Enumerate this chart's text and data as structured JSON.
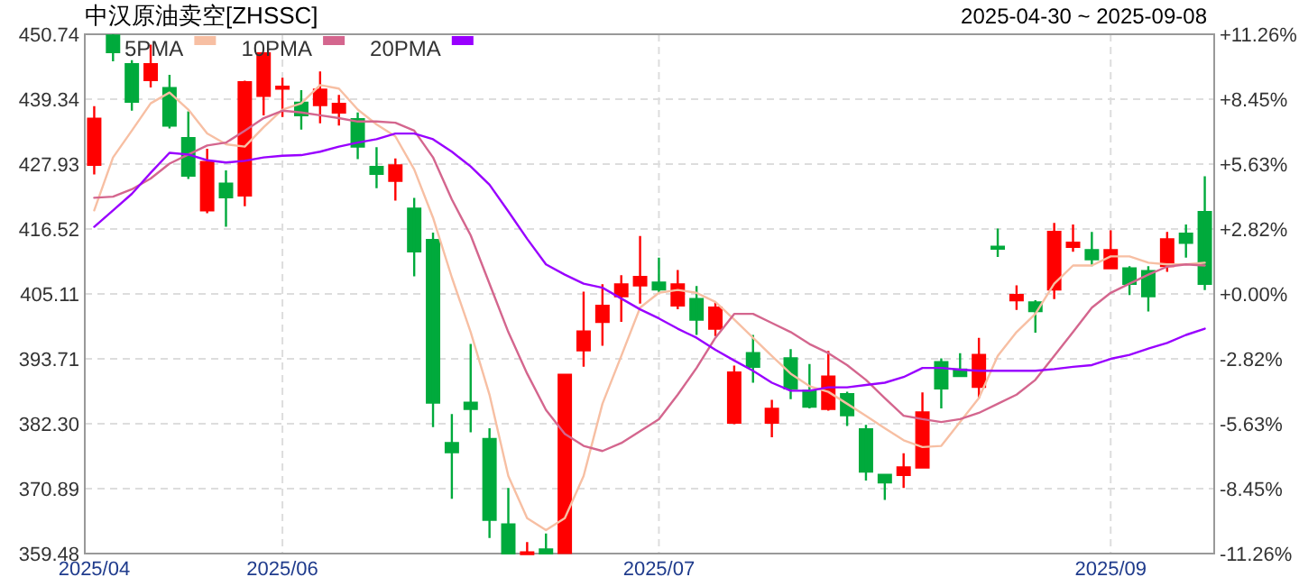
{
  "chart_data": {
    "type": "candlestick",
    "title": "中汉原油卖空[ZHSSC]",
    "subtitle": "2025-04-30 ~ 2025-09-08",
    "categories": [
      "2025/04",
      null,
      null,
      null,
      null,
      null,
      null,
      null,
      null,
      null,
      "2025/06",
      null,
      null,
      null,
      null,
      null,
      null,
      null,
      null,
      null,
      null,
      null,
      null,
      null,
      null,
      null,
      null,
      null,
      null,
      null,
      "2025/07",
      null,
      null,
      null,
      null,
      null,
      null,
      null,
      null,
      null,
      null,
      null,
      null,
      null,
      null,
      null,
      null,
      null,
      null,
      null,
      null,
      null,
      null,
      null,
      "2025/09",
      null,
      null,
      null,
      null,
      null
    ],
    "ohlc": [
      [
        427.8,
        438.1,
        426.1,
        435.9
      ],
      [
        450.5,
        450.74,
        446.0,
        447.6
      ],
      [
        445.5,
        446.2,
        437.3,
        438.9
      ],
      [
        442.7,
        448.9,
        441.4,
        445.5
      ],
      [
        441.3,
        443.6,
        434.2,
        434.7
      ],
      [
        432.5,
        437.2,
        425.3,
        425.9
      ],
      [
        419.8,
        430.6,
        419.3,
        428.3
      ],
      [
        424.5,
        426.8,
        416.9,
        422.1
      ],
      [
        422.4,
        442.6,
        420.5,
        442.3
      ],
      [
        439.9,
        447.6,
        436.5,
        447.4
      ],
      [
        441.3,
        443.1,
        436.2,
        441.5
      ],
      [
        438.7,
        440.9,
        434.0,
        436.5
      ],
      [
        438.3,
        444.2,
        435.1,
        441.0
      ],
      [
        437.0,
        440.1,
        434.7,
        438.5
      ],
      [
        435.8,
        437.0,
        428.8,
        431.0
      ],
      [
        427.4,
        430.9,
        423.7,
        426.2
      ],
      [
        425.0,
        428.9,
        421.5,
        427.7
      ],
      [
        420.1,
        422.0,
        408.2,
        412.6
      ],
      [
        414.6,
        415.9,
        381.7,
        386.0
      ],
      [
        378.9,
        384.0,
        369.1,
        377.3
      ],
      [
        386.0,
        396.3,
        380.8,
        384.9
      ],
      [
        379.6,
        381.5,
        362.2,
        365.4
      ],
      [
        364.6,
        371.0,
        359.48,
        359.5
      ],
      [
        359.48,
        361.5,
        359.48,
        359.7
      ],
      [
        360.2,
        363.0,
        359.48,
        359.5
      ],
      [
        359.6,
        390.9,
        359.48,
        390.9
      ],
      [
        395.2,
        405.5,
        392.3,
        398.5
      ],
      [
        400.2,
        406.8,
        396.0,
        403.0
      ],
      [
        404.7,
        408.4,
        400.2,
        406.8
      ],
      [
        406.6,
        415.3,
        403.4,
        408.1
      ],
      [
        407.1,
        411.5,
        405.3,
        405.9
      ],
      [
        403.1,
        409.3,
        402.4,
        406.8
      ],
      [
        404.2,
        406.5,
        397.9,
        400.6
      ],
      [
        399.0,
        403.6,
        397.7,
        402.7
      ],
      [
        382.5,
        392.5,
        382.2,
        391.3
      ],
      [
        394.7,
        397.9,
        389.5,
        392.3
      ],
      [
        382.5,
        386.5,
        379.9,
        384.9
      ],
      [
        393.8,
        395.4,
        386.6,
        388.5
      ],
      [
        388.1,
        392.8,
        385.0,
        385.3
      ],
      [
        384.9,
        395.1,
        384.6,
        390.6
      ],
      [
        387.5,
        387.9,
        381.9,
        383.8
      ],
      [
        381.3,
        382.1,
        372.3,
        373.9
      ],
      [
        373.3,
        373.3,
        368.9,
        372.0
      ],
      [
        373.3,
        377.1,
        371.0,
        374.6
      ],
      [
        374.6,
        387.8,
        374.6,
        384.3
      ],
      [
        393.1,
        393.8,
        385.0,
        388.5
      ],
      [
        391.8,
        394.7,
        390.5,
        390.7
      ],
      [
        388.8,
        397.4,
        386.8,
        394.4
      ],
      [
        413.4,
        416.6,
        411.6,
        413.2
      ],
      [
        404.0,
        406.6,
        402.3,
        404.9
      ],
      [
        403.6,
        404.0,
        398.3,
        402.1
      ],
      [
        405.9,
        417.6,
        404.2,
        416.0
      ],
      [
        413.4,
        417.3,
        412.5,
        414.1
      ],
      [
        412.8,
        416.0,
        410.0,
        411.2
      ],
      [
        409.6,
        416.3,
        409.6,
        412.8
      ],
      [
        409.6,
        410.0,
        404.9,
        406.9
      ],
      [
        409.1,
        410.0,
        402.0,
        404.7
      ],
      [
        410.0,
        416.0,
        409.0,
        414.7
      ],
      [
        415.7,
        417.3,
        411.5,
        414.1
      ],
      [
        419.5,
        425.8,
        405.8,
        406.9
      ]
    ],
    "colors": [
      "#ff0000",
      "#00aa3c",
      "#00aa3c",
      "#ff0000",
      "#00aa3c",
      "#00aa3c",
      "#ff0000",
      "#00aa3c",
      "#ff0000",
      "#ff0000",
      "#ff0000",
      "#00aa3c",
      "#ff0000",
      "#ff0000",
      "#00aa3c",
      "#00aa3c",
      "#ff0000",
      "#00aa3c",
      "#00aa3c",
      "#00aa3c",
      "#00aa3c",
      "#00aa3c",
      "#00aa3c",
      "#ff0000",
      "#00aa3c",
      "#ff0000",
      "#ff0000",
      "#ff0000",
      "#ff0000",
      "#ff0000",
      "#00aa3c",
      "#ff0000",
      "#00aa3c",
      "#ff0000",
      "#ff0000",
      "#00aa3c",
      "#ff0000",
      "#00aa3c",
      "#00aa3c",
      "#ff0000",
      "#00aa3c",
      "#00aa3c",
      "#00aa3c",
      "#ff0000",
      "#ff0000",
      "#00aa3c",
      "#00aa3c",
      "#ff0000",
      "#00aa3c",
      "#ff0000",
      "#00aa3c",
      "#ff0000",
      "#ff0000",
      "#00aa3c",
      "#ff0000",
      "#00aa3c",
      "#00aa3c",
      "#ff0000",
      "#00aa3c",
      "#00aa3c"
    ],
    "series": [
      {
        "name": "5PMA",
        "type": "line",
        "color": "#f7bfa3",
        "values": [
          419.8,
          429.1,
          433.8,
          438.6,
          440.5,
          437.5,
          433.3,
          431.4,
          431.0,
          434.4,
          437.5,
          438.6,
          441.8,
          441.2,
          437.5,
          434.9,
          432.8,
          427.0,
          418.5,
          408.0,
          398.4,
          387.4,
          373.1,
          365.7,
          363.6,
          365.7,
          373.1,
          385.8,
          394.2,
          402.7,
          405.3,
          405.8,
          405.3,
          403.7,
          400.6,
          397.4,
          394.2,
          391.1,
          388.9,
          387.9,
          385.8,
          383.7,
          381.5,
          379.4,
          378.2,
          378.4,
          382.6,
          386.8,
          394.2,
          398.4,
          401.6,
          406.9,
          410.1,
          410.1,
          411.7,
          411.7,
          410.6,
          410.3,
          410.3,
          410.6
        ]
      },
      {
        "name": "10PMA",
        "type": "line",
        "color": "#d4668e",
        "values": [
          422.0,
          422.2,
          423.5,
          425.4,
          428.0,
          429.6,
          431.2,
          431.7,
          433.8,
          436.0,
          437.3,
          437.0,
          436.5,
          436.0,
          435.4,
          435.4,
          435.2,
          433.8,
          429.1,
          421.7,
          415.4,
          406.9,
          398.4,
          391.1,
          384.7,
          380.5,
          378.4,
          377.5,
          378.9,
          381.0,
          383.1,
          387.4,
          392.1,
          397.4,
          401.6,
          401.6,
          400.0,
          398.4,
          396.3,
          394.7,
          392.6,
          390.0,
          386.8,
          383.7,
          383.1,
          382.6,
          383.1,
          384.2,
          385.8,
          387.4,
          390.0,
          394.2,
          398.4,
          402.7,
          405.3,
          406.9,
          408.5,
          409.9,
          410.3,
          410.1
        ]
      },
      {
        "name": "20PMA",
        "type": "line",
        "color": "#9900ff",
        "values": [
          416.9,
          419.8,
          422.7,
          426.4,
          429.9,
          429.6,
          428.6,
          428.2,
          428.5,
          429.1,
          429.4,
          429.5,
          430.1,
          431.0,
          431.7,
          432.3,
          433.3,
          433.3,
          432.3,
          430.1,
          427.5,
          424.3,
          419.6,
          414.8,
          410.3,
          408.5,
          406.9,
          406.2,
          404.3,
          402.4,
          400.8,
          399.0,
          397.4,
          395.3,
          393.4,
          391.6,
          389.5,
          388.1,
          388.1,
          388.7,
          388.7,
          389.1,
          389.5,
          390.5,
          392.1,
          392.1,
          391.8,
          391.6,
          391.6,
          391.6,
          391.6,
          391.9,
          392.3,
          392.6,
          393.7,
          394.4,
          395.5,
          396.5,
          397.9,
          399.0
        ]
      }
    ],
    "ylim": [
      359.48,
      450.74
    ],
    "yticks": [
      359.48,
      370.89,
      {
        "value": 382.3,
        "label": "382.30"
      },
      393.71,
      405.11,
      416.52,
      427.93,
      439.34,
      450.74
    ],
    "y2lim": [
      -11.26,
      11.26
    ],
    "y2ticks": [
      {
        "value": -11.26,
        "label": "-11.26%"
      },
      {
        "value": -8.45,
        "label": "-8.45%"
      },
      {
        "value": -5.63,
        "label": "-5.63%"
      },
      {
        "value": -2.82,
        "label": "-2.82%"
      },
      {
        "value": 0,
        "label": "+0.00%"
      },
      {
        "value": 2.82,
        "label": "+2.82%"
      },
      {
        "value": 5.63,
        "label": "+5.63%"
      },
      {
        "value": 8.45,
        "label": "+8.45%"
      },
      {
        "value": 11.26,
        "label": "+11.26%"
      }
    ],
    "grid": true,
    "legend": "top left"
  }
}
